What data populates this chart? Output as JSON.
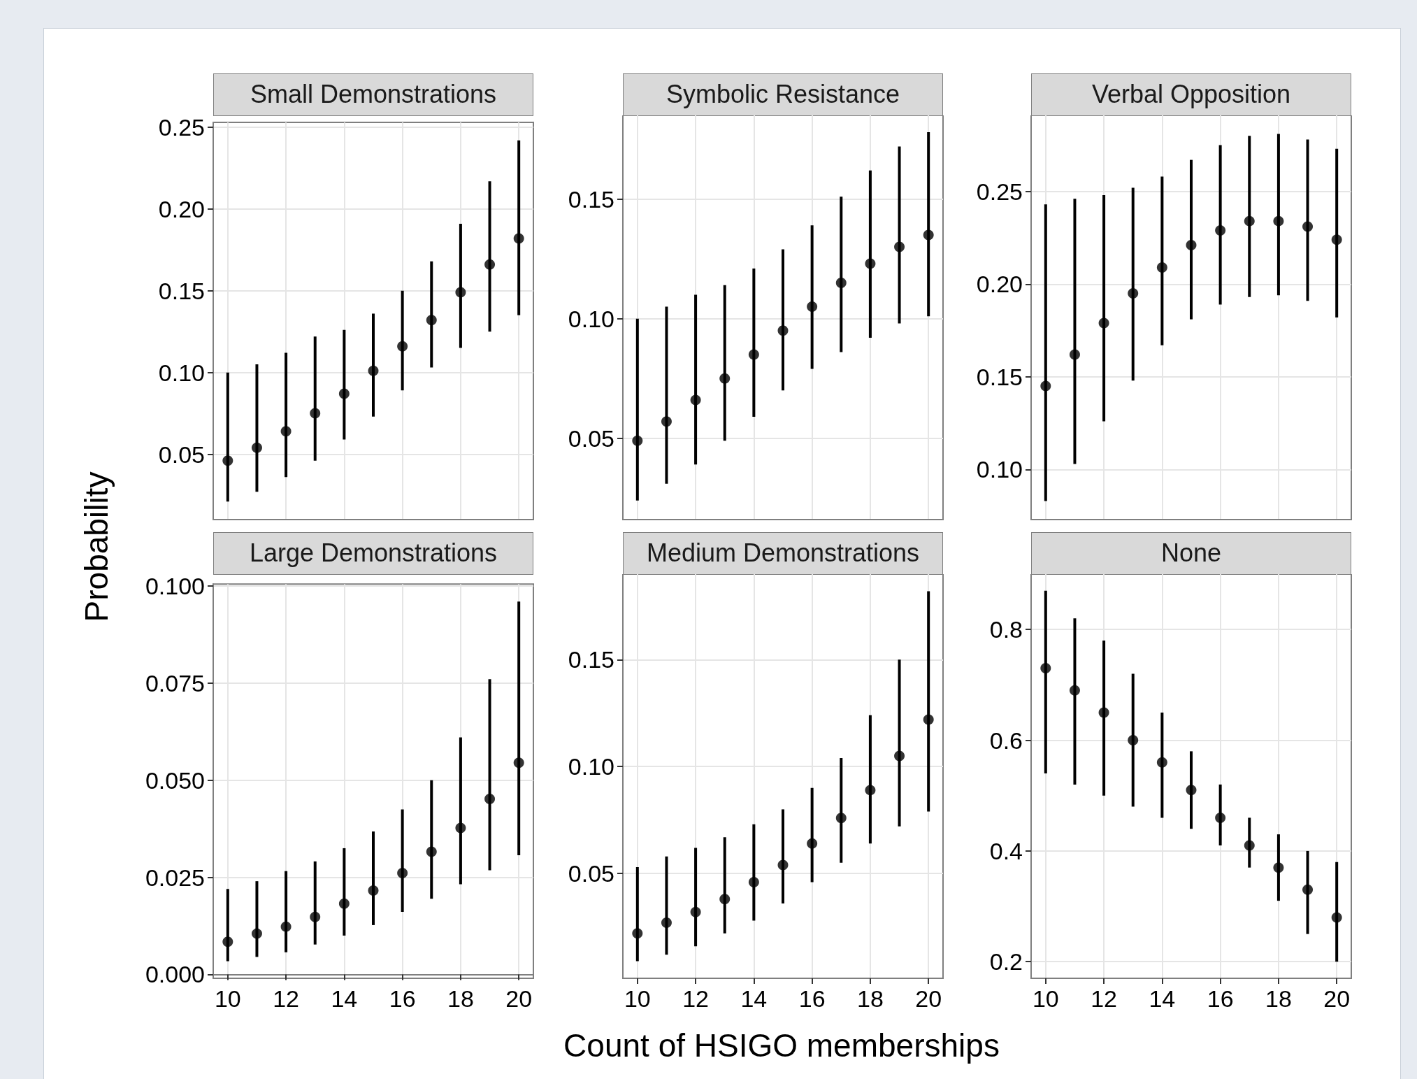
{
  "chart_data": [
    {
      "type": "scatter",
      "title": "Small Demonstrations",
      "x": [
        10,
        11,
        12,
        13,
        14,
        15,
        16,
        17,
        18,
        19,
        20
      ],
      "color": "#000000",
      "marker": "circle",
      "grid": true,
      "tick_labels": "y",
      "values": [
        0.046,
        0.054,
        0.064,
        0.075,
        0.087,
        0.101,
        0.116,
        0.132,
        0.149,
        0.166,
        0.182
      ],
      "errors": [
        [
          0.021,
          0.1
        ],
        [
          0.027,
          0.105
        ],
        [
          0.036,
          0.112
        ],
        [
          0.046,
          0.122
        ],
        [
          0.059,
          0.126
        ],
        [
          0.073,
          0.136
        ],
        [
          0.089,
          0.15
        ],
        [
          0.103,
          0.168
        ],
        [
          0.115,
          0.191
        ],
        [
          0.125,
          0.217
        ],
        [
          0.135,
          0.242
        ]
      ],
      "xlim": [
        9.5,
        20.5
      ],
      "xticks": [
        10,
        12,
        14,
        16,
        18,
        20
      ],
      "ylim": [
        0.01,
        0.253
      ],
      "yticks": [
        0.05,
        {
          "value": 0.1,
          "label": "0.10"
        },
        0.15,
        {
          "value": 0.2,
          "label": "0.20"
        },
        0.25
      ]
    },
    {
      "type": "scatter",
      "title": "Symbolic Resistance",
      "x": [
        10,
        11,
        12,
        13,
        14,
        15,
        16,
        17,
        18,
        19,
        20
      ],
      "color": "#000000",
      "marker": "circle",
      "grid": true,
      "tick_labels": "y",
      "values": [
        0.049,
        0.057,
        0.066,
        0.075,
        0.085,
        0.095,
        0.105,
        0.115,
        0.123,
        0.13,
        0.135
      ],
      "errors": [
        [
          0.024,
          0.1
        ],
        [
          0.031,
          0.105
        ],
        [
          0.039,
          0.11
        ],
        [
          0.049,
          0.114
        ],
        [
          0.059,
          0.121
        ],
        [
          0.07,
          0.129
        ],
        [
          0.079,
          0.139
        ],
        [
          0.086,
          0.151
        ],
        [
          0.092,
          0.162
        ],
        [
          0.098,
          0.172
        ],
        [
          0.101,
          0.178
        ]
      ],
      "xlim": [
        9.5,
        20.5
      ],
      "xticks": [
        10,
        12,
        14,
        16,
        18,
        20
      ],
      "ylim": [
        0.016,
        0.185
      ],
      "yticks": [
        0.05,
        {
          "value": 0.1,
          "label": "0.10"
        },
        0.15
      ]
    },
    {
      "type": "scatter",
      "title": "Verbal Opposition",
      "x": [
        10,
        11,
        12,
        13,
        14,
        15,
        16,
        17,
        18,
        19,
        20
      ],
      "color": "#000000",
      "marker": "circle",
      "grid": true,
      "tick_labels": "y",
      "values": [
        0.145,
        0.162,
        0.179,
        0.195,
        0.209,
        0.221,
        0.229,
        0.234,
        0.234,
        0.231,
        0.224
      ],
      "errors": [
        [
          0.083,
          0.243
        ],
        [
          0.103,
          0.246
        ],
        [
          0.126,
          0.248
        ],
        [
          0.148,
          0.252
        ],
        [
          0.167,
          0.258
        ],
        [
          0.181,
          0.267
        ],
        [
          0.189,
          0.275
        ],
        [
          0.193,
          0.28
        ],
        [
          0.194,
          0.281
        ],
        [
          0.191,
          0.278
        ],
        [
          0.182,
          0.273
        ]
      ],
      "xlim": [
        9.5,
        20.5
      ],
      "xticks": [
        10,
        12,
        14,
        16,
        18,
        20
      ],
      "ylim": [
        0.073,
        0.291
      ],
      "yticks": [
        {
          "value": 0.1,
          "label": "0.10"
        },
        0.15,
        {
          "value": 0.2,
          "label": "0.20"
        },
        0.25
      ]
    },
    {
      "type": "scatter",
      "title": "Large Demonstrations",
      "ylabel": "Probability",
      "x": [
        10,
        11,
        12,
        13,
        14,
        15,
        16,
        17,
        18,
        19,
        20
      ],
      "color": "#000000",
      "marker": "circle",
      "grid": true,
      "values": [
        0.0084,
        0.0105,
        0.0123,
        0.0148,
        0.0182,
        0.0216,
        0.0261,
        0.0316,
        0.0377,
        0.0452,
        0.0545
      ],
      "errors": [
        [
          0.0034,
          0.022
        ],
        [
          0.0045,
          0.024
        ],
        [
          0.0057,
          0.0266
        ],
        [
          0.0077,
          0.0291
        ],
        [
          0.01,
          0.0325
        ],
        [
          0.0127,
          0.0368
        ],
        [
          0.0161,
          0.0425
        ],
        [
          0.0195,
          0.05
        ],
        [
          0.0232,
          0.061
        ],
        [
          0.0268,
          0.076
        ],
        [
          0.0307,
          0.096
        ]
      ],
      "xlim": [
        9.5,
        20.5
      ],
      "xticks": [
        10,
        12,
        14,
        16,
        18,
        20
      ],
      "ylim": [
        -0.001,
        0.1005
      ],
      "yticks": [
        {
          "value": 0,
          "label": "0.000"
        },
        {
          "value": 0.025,
          "label": "0.025"
        },
        {
          "value": 0.05,
          "label": "0.050"
        },
        {
          "value": 0.075,
          "label": "0.075"
        },
        {
          "value": 0.1,
          "label": "0.100"
        }
      ]
    },
    {
      "type": "scatter",
      "title": "Medium Demonstrations",
      "xlabel": "Count of HSIGO memberships",
      "x": [
        10,
        11,
        12,
        13,
        14,
        15,
        16,
        17,
        18,
        19,
        20
      ],
      "color": "#000000",
      "marker": "circle",
      "grid": true,
      "values": [
        0.022,
        0.027,
        0.032,
        0.038,
        0.046,
        0.054,
        0.064,
        0.076,
        0.089,
        0.105,
        0.122
      ],
      "errors": [
        [
          0.009,
          0.053
        ],
        [
          0.012,
          0.058
        ],
        [
          0.016,
          0.062
        ],
        [
          0.022,
          0.067
        ],
        [
          0.028,
          0.073
        ],
        [
          0.036,
          0.08
        ],
        [
          0.046,
          0.09
        ],
        [
          0.055,
          0.104
        ],
        [
          0.064,
          0.124
        ],
        [
          0.072,
          0.15
        ],
        [
          0.079,
          0.182
        ]
      ],
      "xlim": [
        9.5,
        20.5
      ],
      "xticks": [
        10,
        12,
        14,
        16,
        18,
        20
      ],
      "ylim": [
        0.001,
        0.19
      ],
      "yticks": [
        0.05,
        {
          "value": 0.1,
          "label": "0.10"
        },
        0.15
      ]
    },
    {
      "type": "scatter",
      "title": "None",
      "x": [
        10,
        11,
        12,
        13,
        14,
        15,
        16,
        17,
        18,
        19,
        20
      ],
      "color": "#000000",
      "marker": "circle",
      "grid": true,
      "values": [
        0.73,
        0.69,
        0.65,
        0.6,
        0.56,
        0.51,
        0.46,
        0.41,
        0.37,
        0.33,
        0.28
      ],
      "errors": [
        [
          0.54,
          0.87
        ],
        [
          0.52,
          0.82
        ],
        [
          0.5,
          0.78
        ],
        [
          0.48,
          0.72
        ],
        [
          0.46,
          0.65
        ],
        [
          0.44,
          0.58
        ],
        [
          0.41,
          0.52
        ],
        [
          0.37,
          0.46
        ],
        [
          0.31,
          0.43
        ],
        [
          0.25,
          0.4
        ],
        [
          0.2,
          0.38
        ]
      ],
      "xlim": [
        9.5,
        20.5
      ],
      "xticks": [
        10,
        12,
        14,
        16,
        18,
        20
      ],
      "ylim": [
        0.17,
        0.9
      ],
      "yticks": [
        0.2,
        0.4,
        0.6,
        0.8
      ]
    }
  ]
}
